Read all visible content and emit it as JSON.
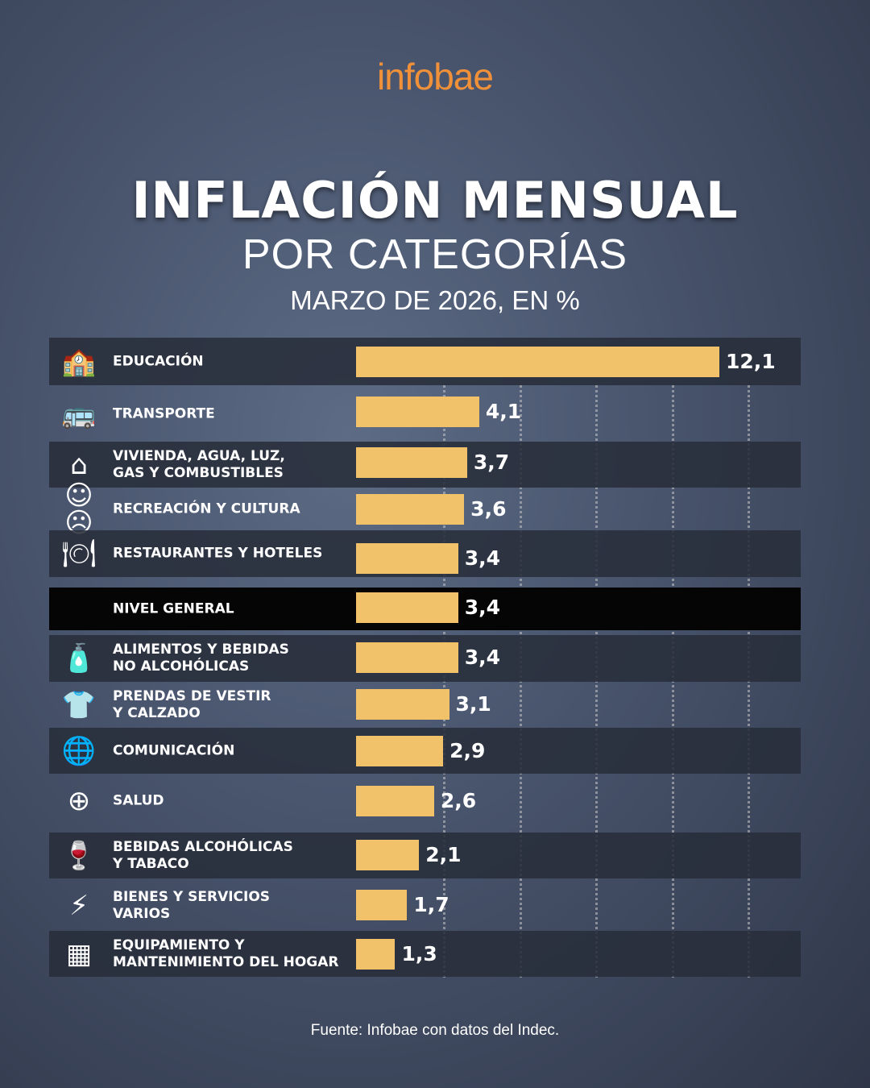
{
  "brand": "infobae",
  "title": "INFLACIÓN MENSUAL",
  "subtitle": "POR CATEGORÍAS",
  "period": "MARZO DE 2026, EN %",
  "source": "Fuente: Infobae con datos del Indec.",
  "chart_data": {
    "type": "bar",
    "orientation": "horizontal",
    "title": "INFLACIÓN MENSUAL POR CATEGORÍAS",
    "subtitle": "MARZO DE 2026, EN %",
    "bar_color": "#f2c26a",
    "grid": true,
    "categories": [
      {
        "label": "EDUCACIÓN",
        "icon": "school-icon",
        "value": 12.1,
        "display": "12,1"
      },
      {
        "label": "TRANSPORTE",
        "icon": "bus-icon",
        "value": 4.1,
        "display": "4,1"
      },
      {
        "label": "VIVIENDA, AGUA, LUZ,\nGAS Y COMBUSTIBLES",
        "icon": "house-icon",
        "value": 3.7,
        "display": "3,7"
      },
      {
        "label": "RECREACIÓN Y CULTURA",
        "icon": "theater-masks-icon",
        "value": 3.6,
        "display": "3,6"
      },
      {
        "label": "RESTAURANTES Y HOTELES",
        "icon": "plate-cutlery-icon",
        "value": 3.4,
        "display": "3,4"
      },
      {
        "label": "NIVEL GENERAL",
        "icon": "",
        "value": 3.4,
        "display": "3,4",
        "highlight": true
      },
      {
        "label": "ALIMENTOS Y BEBIDAS\nNO ALCOHÓLICAS",
        "icon": "bottle-icon",
        "value": 3.4,
        "display": "3,4"
      },
      {
        "label": "PRENDAS DE VESTIR\nY CALZADO",
        "icon": "tshirt-icon",
        "value": 3.1,
        "display": "3,1"
      },
      {
        "label": "COMUNICACIÓN",
        "icon": "globe-icon",
        "value": 2.9,
        "display": "2,9"
      },
      {
        "label": "SALUD",
        "icon": "health-pin-icon",
        "value": 2.6,
        "display": "2,6"
      },
      {
        "label": "BEBIDAS ALCOHÓLICAS\nY TABACO",
        "icon": "wine-glass-icon",
        "value": 2.1,
        "display": "2,1"
      },
      {
        "label": "BIENES Y SERVICIOS\nVARIOS",
        "icon": "lightning-icon",
        "value": 1.7,
        "display": "1,7"
      },
      {
        "label": "EQUIPAMIENTO Y\nMANTENIMIENTO DEL HOGAR",
        "icon": "furniture-icon",
        "value": 1.3,
        "display": "1,3"
      }
    ]
  }
}
